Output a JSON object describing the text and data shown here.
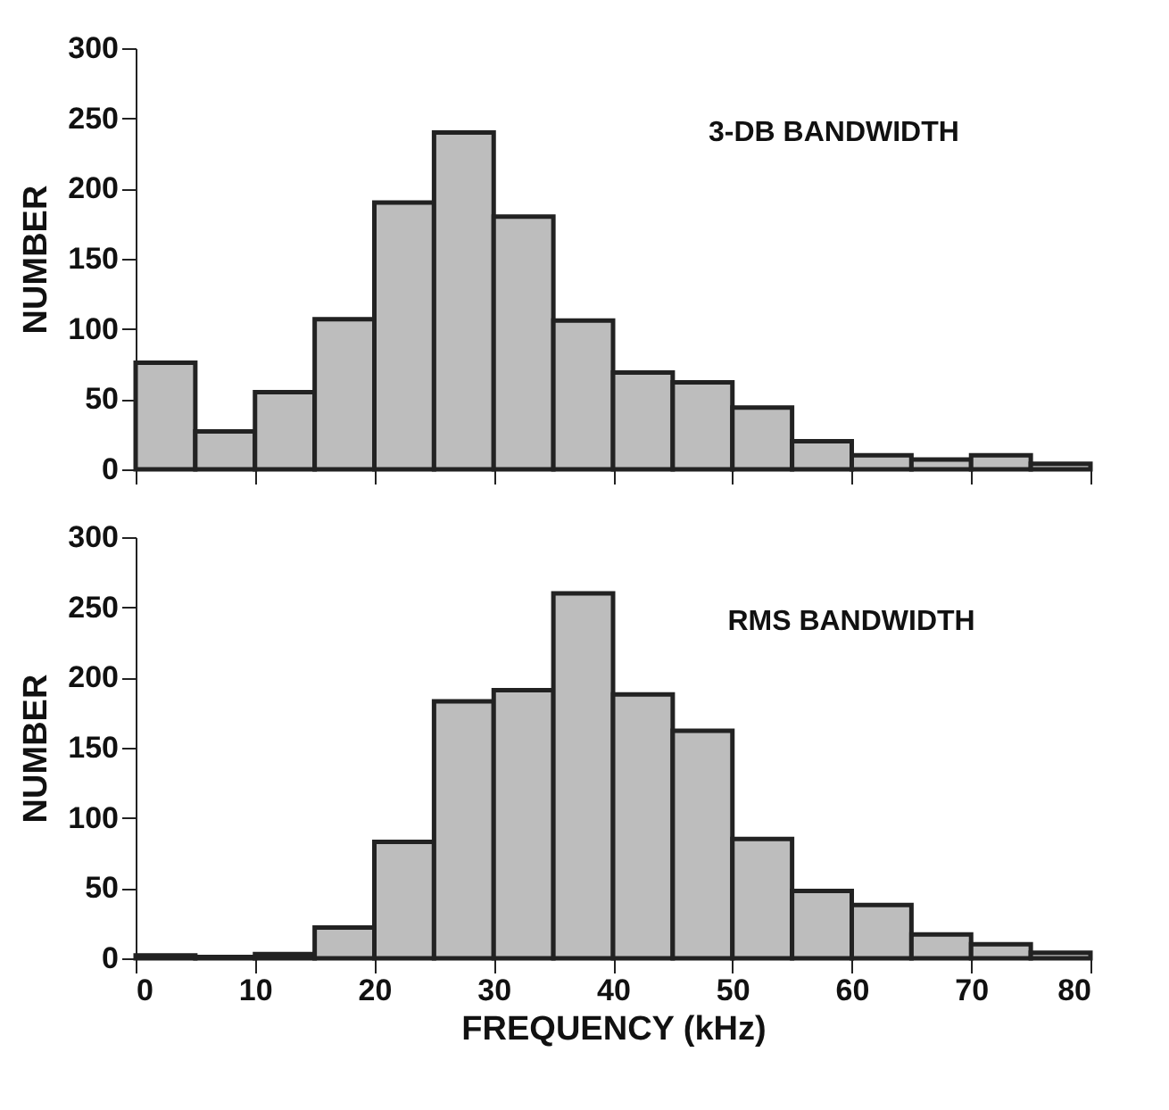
{
  "chart_data": [
    {
      "type": "histogram",
      "ylabel": "NUMBER",
      "annotations": [
        "3-DB BANDWIDTH"
      ],
      "bins": [
        0,
        5,
        10,
        15,
        20,
        25,
        30,
        35,
        40,
        45,
        50,
        55,
        60,
        65,
        70,
        75,
        80
      ],
      "values": [
        76,
        27,
        55,
        107,
        190,
        240,
        180,
        106,
        69,
        62,
        44,
        20,
        10,
        7,
        10,
        4
      ],
      "color": "#bdbdbd",
      "xlim": [
        0,
        80
      ],
      "xticks": [
        0,
        10,
        20,
        30,
        40,
        50,
        60,
        70,
        80
      ],
      "ylim": [
        0,
        300
      ],
      "yticks": [
        0,
        50,
        100,
        150,
        200,
        250,
        300
      ],
      "tick_labels": "y"
    },
    {
      "type": "histogram",
      "ylabel": "NUMBER",
      "xlabel": "FREQUENCY (kHz)",
      "annotations": [
        "RMS BANDWIDTH"
      ],
      "bins": [
        0,
        5,
        10,
        15,
        20,
        25,
        30,
        35,
        40,
        45,
        50,
        55,
        60,
        65,
        70,
        75,
        80
      ],
      "values": [
        2,
        1,
        3,
        22,
        83,
        183,
        191,
        260,
        188,
        162,
        85,
        48,
        38,
        17,
        10,
        4
      ],
      "color": "#bdbdbd",
      "xlim": [
        0,
        80
      ],
      "xticks": [
        0,
        10,
        20,
        30,
        40,
        50,
        60,
        70,
        80
      ],
      "ylim": [
        0,
        300
      ],
      "yticks": [
        0,
        50,
        100,
        150,
        200,
        250,
        300
      ]
    }
  ]
}
